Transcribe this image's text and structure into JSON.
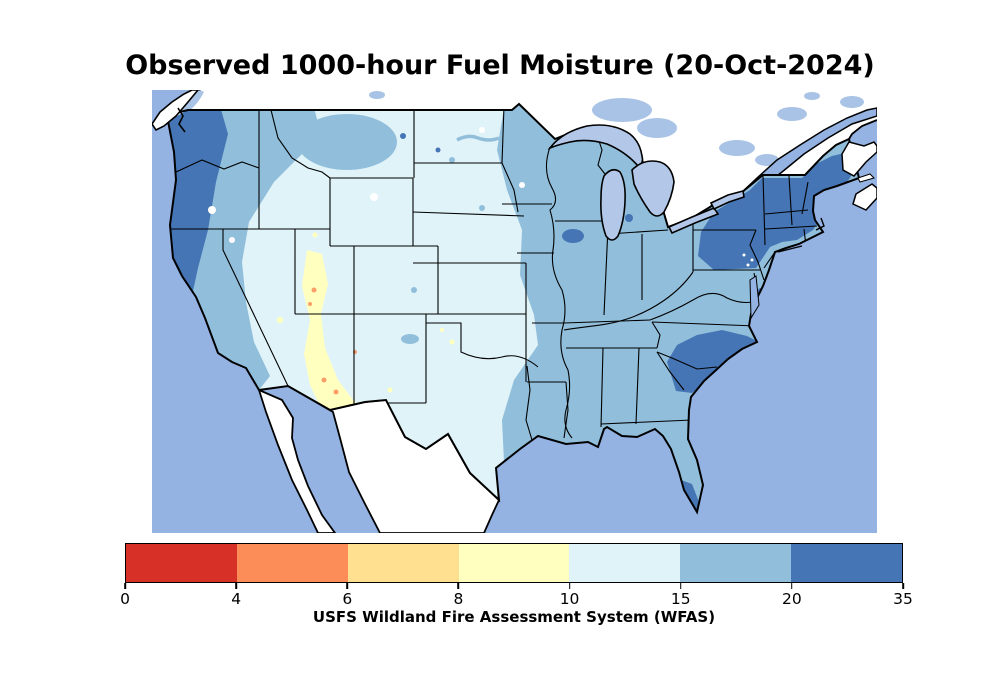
{
  "figure": {
    "title": "Observed 1000-hour Fuel Moisture (20-Oct-2024)",
    "caption": "USFS Wildland Fire Assessment System (WFAS)"
  },
  "colorbar": {
    "boundaries": [
      0,
      4,
      6,
      8,
      10,
      15,
      20,
      35
    ],
    "tick_labels": [
      "0",
      "4",
      "6",
      "8",
      "10",
      "15",
      "20",
      "35"
    ],
    "colors": [
      "#d73027",
      "#fc8d59",
      "#fee090",
      "#ffffbf",
      "#e0f3f8",
      "#91bfdb",
      "#4575b4"
    ],
    "outline_color": "#000000"
  },
  "map": {
    "type": "filled-contour map",
    "region": "Contiguous United States (with adjacent Canada and Mexico shown without data)",
    "ocean_color": "#94b2e2",
    "lake_color": "#b3c8e8",
    "canada_contour_color": "#a9c3e6",
    "nodata_land_color": "#ffffff",
    "border_color": "#000000",
    "legend_classes": [
      {
        "range": "0-4",
        "color": "#d73027",
        "note": "not present on map"
      },
      {
        "range": "4-6",
        "color": "#fc8d59",
        "note": "small specks in Utah/Arizona"
      },
      {
        "range": "6-8",
        "color": "#fee090",
        "note": "small specks in Utah/Arizona"
      },
      {
        "range": "8-10",
        "color": "#ffffbf",
        "note": "central Utah and Arizona band"
      },
      {
        "range": "10-15",
        "color": "#e0f3f8",
        "note": "interior West, Great Basin, Plains, central Texas"
      },
      {
        "range": "15-20",
        "color": "#91bfdb",
        "note": "West Coast band, Upper Midwest and entire East/Gulf region"
      },
      {
        "range": "20-35",
        "color": "#4575b4",
        "note": "W. Washington/Oregon coast, New England/New York, N. Carolina/Virginia, south Florida tip"
      }
    ]
  }
}
